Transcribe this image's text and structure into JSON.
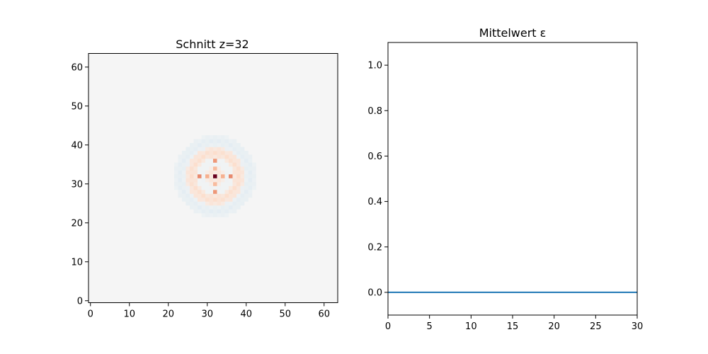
{
  "chart_data": [
    {
      "type": "heatmap",
      "title": "Schnitt z=32",
      "xlabel": "",
      "ylabel": "",
      "grid": false,
      "size": 64,
      "xlim": [
        -0.5,
        63.5
      ],
      "ylim": [
        -0.5,
        63.5
      ],
      "xticks": [
        0,
        10,
        20,
        30,
        40,
        50,
        60
      ],
      "yticks": [
        0,
        10,
        20,
        30,
        40,
        50,
        60
      ],
      "colormap": "RdBu_r",
      "background_color": "#f5f5f5",
      "center": [
        32,
        32
      ],
      "rings": [
        {
          "radius_from": 0,
          "radius_to": 2.5,
          "level": 0.15
        },
        {
          "radius_from": 2.5,
          "radius_to": 4.5,
          "level": -0.05
        },
        {
          "radius_from": 4.5,
          "radius_to": 7.5,
          "level": 0.22
        },
        {
          "radius_from": 7.5,
          "radius_to": 10.5,
          "level": -0.12
        }
      ],
      "hot_cells": [
        {
          "x": 32,
          "y": 32,
          "level": 1.0
        },
        {
          "x": 32,
          "y": 36,
          "level": 0.55
        },
        {
          "x": 32,
          "y": 28,
          "level": 0.55
        },
        {
          "x": 28,
          "y": 32,
          "level": 0.6
        },
        {
          "x": 36,
          "y": 32,
          "level": 0.6
        },
        {
          "x": 32,
          "y": 34,
          "level": 0.4
        },
        {
          "x": 32,
          "y": 30,
          "level": 0.4
        },
        {
          "x": 34,
          "y": 32,
          "level": 0.45
        },
        {
          "x": 30,
          "y": 32,
          "level": 0.45
        }
      ]
    },
    {
      "type": "line",
      "title": "Mittelwert ε",
      "xlabel": "",
      "ylabel": "",
      "grid": false,
      "xlim": [
        0,
        30
      ],
      "ylim": [
        -0.1,
        1.1
      ],
      "xticks": [
        0,
        5,
        10,
        15,
        20,
        25,
        30
      ],
      "yticks": [
        0.0,
        0.2,
        0.4,
        0.6,
        0.8,
        1.0
      ],
      "ytick_labels": [
        "0.0",
        "0.2",
        "0.4",
        "0.6",
        "0.8",
        "1.0"
      ],
      "series": [
        {
          "color": "#1f77b4",
          "x": [
            0,
            30
          ],
          "y": [
            0,
            0
          ]
        }
      ]
    }
  ]
}
